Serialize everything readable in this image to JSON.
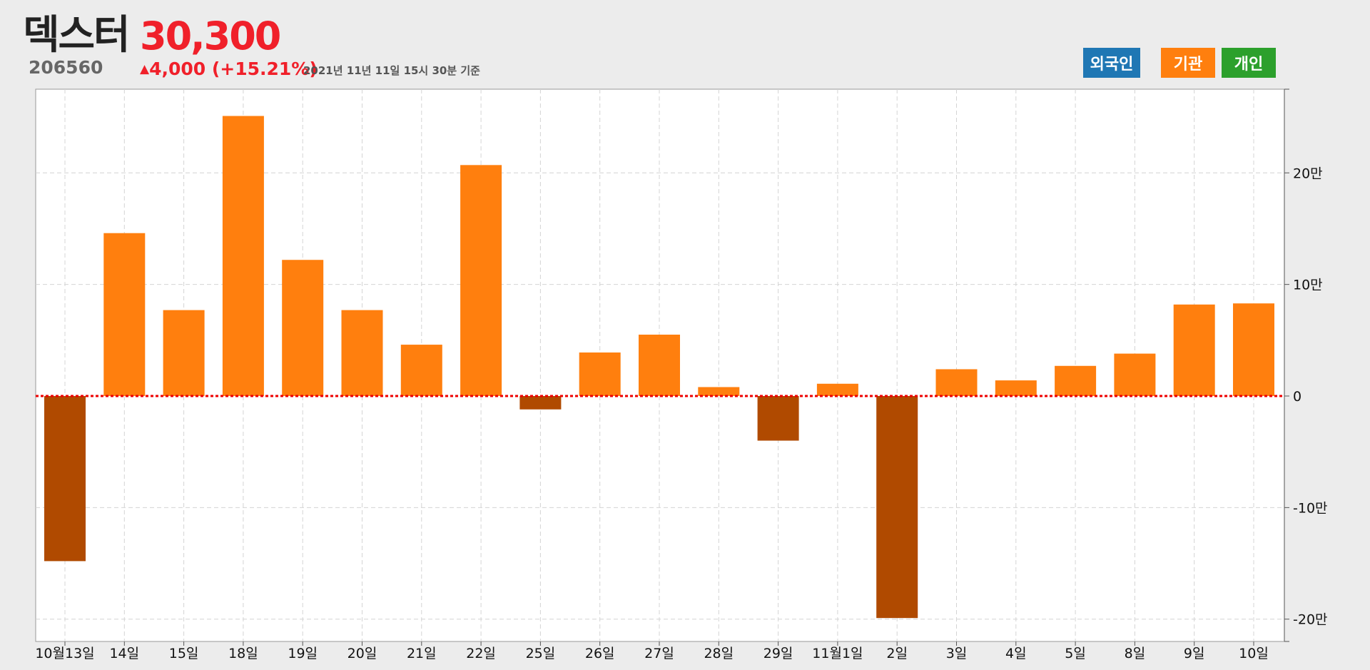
{
  "header": {
    "name": "덱스터",
    "code": "206560",
    "price": "30,300",
    "change_arrow": "▲",
    "change_text": "4,000 (+15.21%)",
    "as_of": "2021년 11년 11일 15시 30분 기준"
  },
  "legend": [
    {
      "label": "외국인",
      "color": "#1f77b4"
    },
    {
      "label": "기관",
      "color": "#ff7f0e"
    },
    {
      "label": "개인",
      "color": "#2ca02c"
    }
  ],
  "colors": {
    "positive": "#ff7f0e",
    "negative": "#b04a00",
    "zero_line": "#ee0000",
    "grid": "#d4d4d4",
    "accent_price": "#f0202a"
  },
  "chart_data": {
    "type": "bar",
    "title": "",
    "xlabel": "",
    "ylabel": "",
    "ylim": [
      -220000,
      275000
    ],
    "yticks": [
      {
        "value": 200000,
        "label": "20만"
      },
      {
        "value": 100000,
        "label": "10만"
      },
      {
        "value": 0,
        "label": "0"
      },
      {
        "value": -100000,
        "label": "-10만"
      },
      {
        "value": -200000,
        "label": "-20만"
      }
    ],
    "grid": true,
    "categories": [
      "10월13일",
      "14일",
      "15일",
      "18일",
      "19일",
      "20일",
      "21일",
      "22일",
      "25일",
      "26일",
      "27일",
      "28일",
      "29일",
      "11월1일",
      "2일",
      "3일",
      "4일",
      "5일",
      "8일",
      "9일",
      "10일"
    ],
    "series": [
      {
        "values": [
          -148000,
          146000,
          77000,
          251000,
          122000,
          77000,
          46000,
          207000,
          -12000,
          39000,
          55000,
          8000,
          -40000,
          11000,
          -199000,
          24000,
          14000,
          27000,
          38000,
          82000,
          83000
        ]
      }
    ]
  }
}
